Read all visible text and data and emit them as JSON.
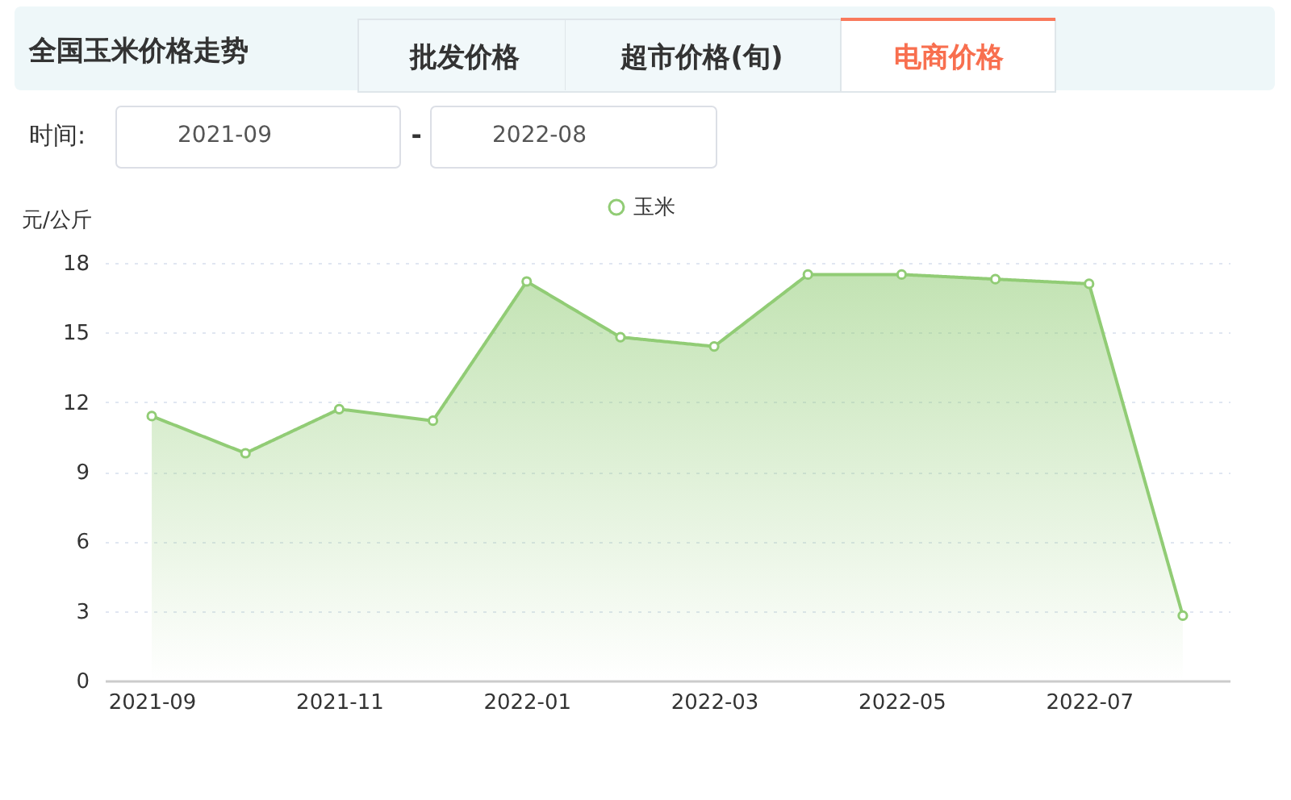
{
  "chart_data": {
    "type": "area",
    "title": "全国玉米价格走势",
    "annotations": [
      "批发价格",
      "超市价格(旬)",
      "电商价格",
      "时间:",
      "2021-09",
      "-",
      "2022-08"
    ],
    "ylabel": "元/公斤",
    "categories": [
      "2021-09",
      null,
      "2021-11",
      null,
      "2022-01",
      null,
      "2022-03",
      null,
      "2022-05",
      null,
      "2022-07",
      null
    ],
    "series": [
      {
        "name": "玉米",
        "color": "#91cc75",
        "values": [
          11.4,
          9.8,
          11.7,
          11.2,
          17.2,
          14.8,
          14.4,
          17.5,
          17.5,
          17.3,
          17.1,
          2.8
        ]
      }
    ],
    "ylim": [
      0,
      18
    ],
    "yticks": [
      0,
      3,
      6,
      9,
      12,
      15,
      18
    ],
    "grid": "y",
    "legend": "top",
    "marker": "circle",
    "line_style": "solid"
  }
}
